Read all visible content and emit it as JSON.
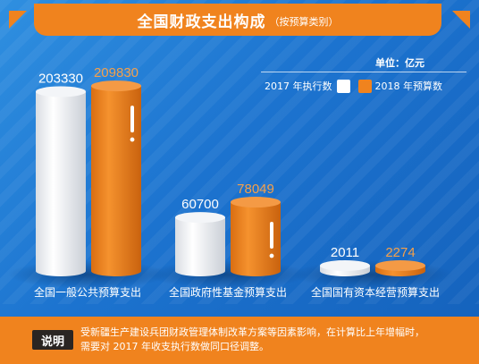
{
  "chart_data": {
    "type": "bar",
    "title": "全国财政支出构成",
    "subtitle": "（按预算类别）",
    "unit_label": "单位：亿元",
    "categories": [
      "全国一般公共预算支出",
      "全国政府性基金预算支出",
      "全国国有资本经营预算支出"
    ],
    "series": [
      {
        "name": "2017 年执行数",
        "values": [
          203330,
          60700,
          2011
        ],
        "value_labels": [
          "203330",
          "60700",
          "2011"
        ]
      },
      {
        "name": "2018 年预算数",
        "values": [
          209830,
          78049,
          2274
        ],
        "value_labels": [
          "209830",
          "78049",
          "2274"
        ]
      }
    ],
    "ylim": [
      0,
      230000
    ],
    "legend_position": "top-right",
    "grid": false
  },
  "colors": {
    "series_2017": "#ffffff",
    "series_2018": "#f0831e",
    "background": "#1c73cf",
    "value_label_2017": "#ffffff",
    "value_label_2018": "#f5a04a"
  },
  "notes": {
    "label": "说明",
    "text": "受新疆生产建设兵团财政管理体制改革方案等因素影响，在计算比上年增幅时，\n需要对 2017 年收支执行数做同口径调整。"
  }
}
